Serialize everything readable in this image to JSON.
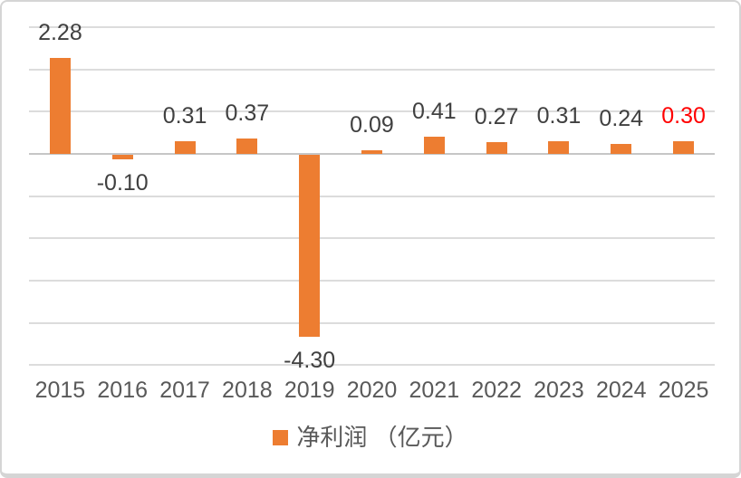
{
  "chart_data": {
    "type": "bar",
    "title": "",
    "categories": [
      "2015",
      "2016",
      "2017",
      "2018",
      "2019",
      "2020",
      "2021",
      "2022",
      "2023",
      "2024",
      "2025"
    ],
    "series": [
      {
        "name": "净利润 （亿元）",
        "values": [
          2.28,
          -0.1,
          0.31,
          0.37,
          -4.3,
          0.09,
          0.41,
          0.27,
          0.31,
          0.24,
          0.3
        ]
      }
    ],
    "value_labels": [
      "2.28",
      "-0.10",
      "0.31",
      "0.37",
      "-4.30",
      "0.09",
      "0.41",
      "0.27",
      "0.31",
      "0.24",
      "0.30"
    ],
    "label_colors": [
      "#404040",
      "#404040",
      "#404040",
      "#404040",
      "#404040",
      "#404040",
      "#404040",
      "#404040",
      "#404040",
      "#404040",
      "#FF0000"
    ],
    "legend": "净利润 （亿元）",
    "legend_position": "bottom",
    "xlabel": "",
    "ylabel": "",
    "ylim": [
      -5,
      3
    ],
    "grid": true,
    "grid_interval": 1,
    "bar_color": "#ED7D31",
    "gridline_color": "#DCDCDC",
    "zero_line_color": "#C6C6C6",
    "axis_label_color": "#595959",
    "data_label_color": "#404040",
    "highlight_label_color": "#FF0000",
    "frame_border_color": "#D5D5D5",
    "background_color": "#FFFFFF"
  }
}
